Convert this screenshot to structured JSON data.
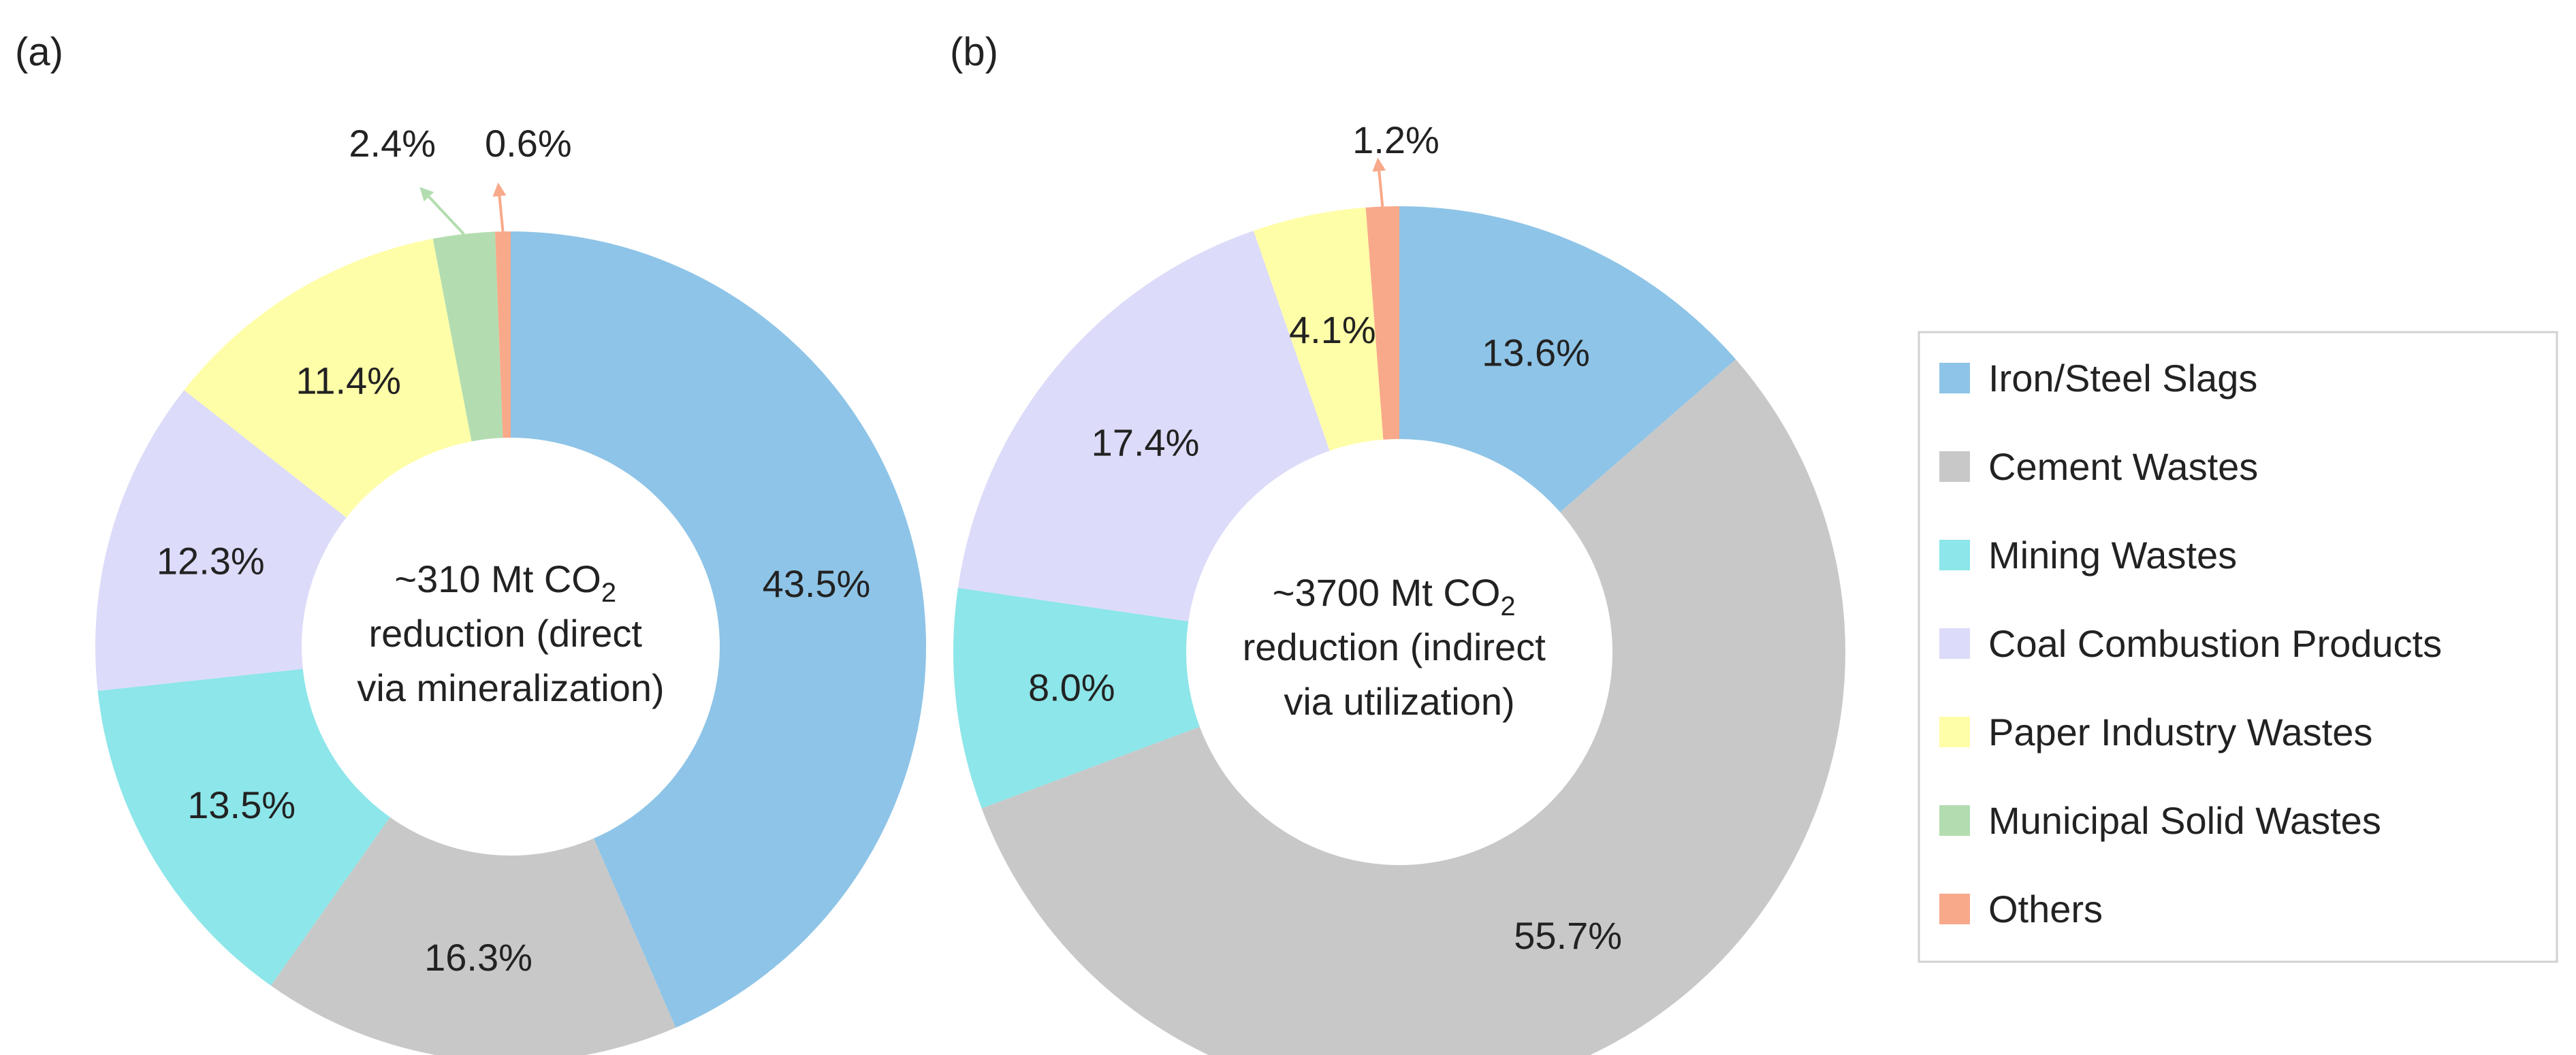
{
  "figure": {
    "colors": {
      "Iron/Steel Slags": "#8EC4E7",
      "Cement Wastes": "#C8C8C8",
      "Mining Wastes": "#8DE6E9",
      "Coal Combustion Products": "#DCDBF9",
      "Paper Industry Wastes": "#FFFEA8",
      "Municipal Solid Wastes": "#B3DDB0",
      "Others": "#F8A98A"
    }
  },
  "legend": {
    "items": [
      "Iron/Steel Slags",
      "Cement Wastes",
      "Mining Wastes",
      "Coal Combustion Products",
      "Paper Industry Wastes",
      "Municipal Solid Wastes",
      "Others"
    ]
  },
  "chart_data": [
    {
      "type": "pie",
      "panel_label": "(a)",
      "center_text": [
        "~310 Mt CO",
        "2",
        "reduction (direct",
        "via mineralization)"
      ],
      "categories": [
        "Iron/Steel Slags",
        "Cement Wastes",
        "Mining Wastes",
        "Coal Combustion Products",
        "Paper Industry Wastes",
        "Municipal Solid Wastes",
        "Others"
      ],
      "values": [
        43.5,
        16.3,
        13.5,
        12.3,
        11.4,
        2.4,
        0.6
      ],
      "labels": [
        "43.5%",
        "16.3%",
        "13.5%",
        "12.3%",
        "11.4%",
        "2.4%",
        "0.6%"
      ]
    },
    {
      "type": "pie",
      "panel_label": "(b)",
      "center_text": [
        "~3700 Mt CO",
        "2",
        "reduction (indirect",
        "via utilization)"
      ],
      "categories": [
        "Iron/Steel Slags",
        "Cement Wastes",
        "Mining Wastes",
        "Coal Combustion Products",
        "Paper Industry Wastes",
        "Others"
      ],
      "values": [
        13.6,
        55.7,
        8.0,
        17.4,
        4.1,
        1.2
      ],
      "labels": [
        "13.6%",
        "55.7%",
        "8.0%",
        "17.4%",
        "4.1%",
        "1.2%"
      ]
    }
  ]
}
